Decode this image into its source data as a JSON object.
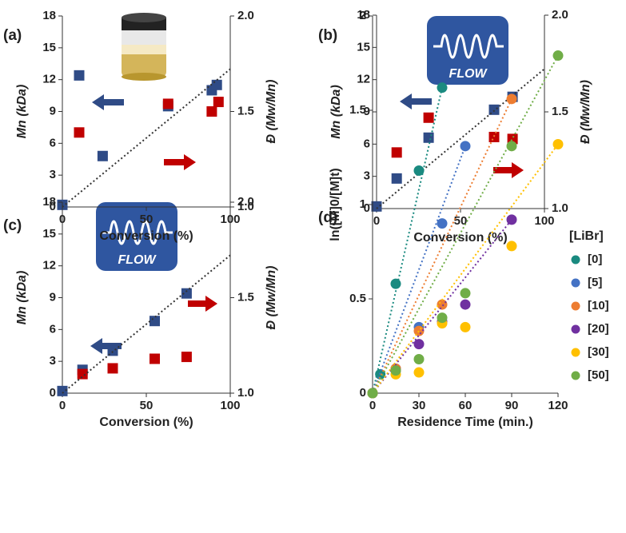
{
  "chart_data": [
    {
      "type": "scatter",
      "label": "(a)",
      "x_label": "Conversion (%)",
      "y_label": "Mn (kDa)",
      "y2_label": "Đ (Mw/Mn)",
      "xlim": [
        0,
        100
      ],
      "xticks": [
        0,
        50,
        100
      ],
      "ylim": [
        0,
        18
      ],
      "yticks": [
        0,
        3,
        6,
        9,
        12,
        15,
        18
      ],
      "y2lim": [
        1,
        2
      ],
      "y2ticks": [
        {
          "value": 1,
          "label": "1.0"
        },
        {
          "value": 1.5,
          "label": "1.5"
        },
        {
          "value": 2,
          "label": "2.0"
        }
      ],
      "series": [
        {
          "color": "#2f4b86",
          "marker": "square",
          "x": [
            0,
            10,
            24,
            63,
            89,
            92
          ],
          "values": [
            0.2,
            12.4,
            4.8,
            9.5,
            11,
            11.5
          ]
        },
        {
          "color": "#c00000",
          "marker": "square",
          "axis": "y2",
          "x": [
            10,
            63,
            89,
            93
          ],
          "values": [
            1.39,
            1.54,
            1.5,
            1.55
          ]
        },
        {
          "color": "#333333",
          "style": "dotted",
          "x": [
            0,
            100
          ],
          "values": [
            0,
            13
          ]
        }
      ]
    },
    {
      "type": "scatter",
      "label": "(b)",
      "icon_text": "FLOW",
      "x_label": "Conversion (%)",
      "y_label": "Mn (kDa)",
      "y2_label": "Đ (Mw/Mn)",
      "xlim": [
        0,
        100
      ],
      "xticks": [
        0,
        50,
        100
      ],
      "ylim": [
        0,
        18
      ],
      "yticks": [
        0,
        3,
        6,
        9,
        12,
        15,
        18
      ],
      "y2lim": [
        1,
        2
      ],
      "y2ticks": [
        {
          "value": 1,
          "label": "1.0"
        },
        {
          "value": 1.5,
          "label": "1.5"
        },
        {
          "value": 2,
          "label": "2.0"
        }
      ],
      "series": [
        {
          "color": "#2f4b86",
          "marker": "square",
          "x": [
            0,
            12,
            31,
            70,
            81
          ],
          "values": [
            0.2,
            2.8,
            6.6,
            9.2,
            10.4
          ]
        },
        {
          "color": "#c00000",
          "marker": "square",
          "axis": "y2",
          "x": [
            12,
            31,
            70,
            81
          ],
          "values": [
            1.29,
            1.47,
            1.37,
            1.36
          ]
        },
        {
          "color": "#333333",
          "style": "dotted",
          "x": [
            0,
            100
          ],
          "values": [
            0,
            13
          ]
        }
      ]
    },
    {
      "type": "scatter",
      "label": "(c)",
      "icon_text": "FLOW",
      "x_label": "Conversion (%)",
      "y_label": "Mn (kDa)",
      "y2_label": "Đ (Mw/Mn)",
      "xlim": [
        0,
        100
      ],
      "xticks": [
        0,
        50,
        100
      ],
      "ylim": [
        0,
        18
      ],
      "yticks": [
        0,
        3,
        6,
        9,
        12,
        15,
        18
      ],
      "y2lim": [
        1,
        2
      ],
      "y2ticks": [
        {
          "value": 1,
          "label": "1.0"
        },
        {
          "value": 1.5,
          "label": "1.5"
        },
        {
          "value": 2,
          "label": "2.0"
        }
      ],
      "series": [
        {
          "color": "#2f4b86",
          "marker": "square",
          "x": [
            0,
            12,
            30,
            55,
            74
          ],
          "values": [
            0.2,
            2.2,
            4,
            6.8,
            9.4
          ]
        },
        {
          "color": "#c00000",
          "marker": "square",
          "axis": "y2",
          "x": [
            12,
            30,
            55,
            74
          ],
          "values": [
            1.1,
            1.13,
            1.18,
            1.19
          ]
        },
        {
          "color": "#333333",
          "style": "dotted",
          "x": [
            0,
            100
          ],
          "values": [
            0,
            13
          ]
        }
      ]
    },
    {
      "type": "scatter",
      "label": "(d)",
      "x_label": "Residence Time (min.)",
      "y_label": "ln([M]0/[M]t)",
      "legend_title": "[LiBr]",
      "xlim": [
        0,
        120
      ],
      "xticks": [
        0,
        30,
        60,
        90,
        120
      ],
      "ylim": [
        0,
        2
      ],
      "yticks": [
        0,
        0.5,
        1,
        1.5,
        2
      ],
      "series": [
        {
          "name": "[0]",
          "color": "#1a8a80",
          "marker": "circle",
          "fit": true,
          "x": [
            0,
            5,
            15,
            30,
            45
          ],
          "values": [
            0,
            0.1,
            0.58,
            1.18,
            1.62
          ]
        },
        {
          "name": "[5]",
          "color": "#4472c4",
          "marker": "circle",
          "fit": true,
          "x": [
            0,
            15,
            30,
            45,
            60
          ],
          "values": [
            0,
            0.13,
            0.35,
            0.9,
            1.31
          ]
        },
        {
          "name": "[10]",
          "color": "#ed7d31",
          "marker": "circle",
          "fit": true,
          "x": [
            0,
            15,
            30,
            45,
            90
          ],
          "values": [
            0,
            0.13,
            0.33,
            0.47,
            1.56
          ]
        },
        {
          "name": "[20]",
          "color": "#7030a0",
          "marker": "circle",
          "fit": true,
          "x": [
            0,
            15,
            30,
            45,
            60,
            90
          ],
          "values": [
            0,
            0.12,
            0.26,
            0.38,
            0.47,
            0.92
          ]
        },
        {
          "name": "[30]",
          "color": "#ffc000",
          "marker": "circle",
          "fit": true,
          "x": [
            0,
            15,
            30,
            45,
            60,
            90,
            120
          ],
          "values": [
            0,
            0.1,
            0.11,
            0.37,
            0.35,
            0.78,
            1.32
          ]
        },
        {
          "name": "[50]",
          "color": "#70ad47",
          "marker": "circle",
          "fit": true,
          "x": [
            0,
            15,
            30,
            45,
            60,
            90,
            120
          ],
          "values": [
            0,
            0.12,
            0.18,
            0.4,
            0.53,
            1.31,
            1.79
          ]
        }
      ]
    }
  ]
}
